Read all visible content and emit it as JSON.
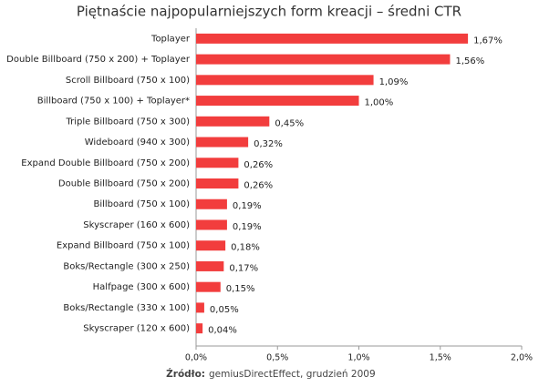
{
  "chart_data": {
    "type": "bar",
    "orientation": "horizontal",
    "title": "Piętnaście najpopularniejszych form kreacji – średni CTR",
    "source_label": "Źródło:",
    "source": "gemiusDirectEffect, grudzień 2009",
    "categories": [
      "Toplayer",
      "Double Billboard (750 x 200) + Toplayer",
      "Scroll Billboard (750 x 100)",
      "Billboard (750 x 100) + Toplayer*",
      "Triple Billboard (750 x 300)",
      "Wideboard (940 x 300)",
      "Expand Double Billboard (750 x 200)",
      "Double Billboard (750 x 200)",
      "Billboard (750 x 100)",
      "Skyscraper (160 x 600)",
      "Expand Billboard (750 x 100)",
      "Boks/Rectangle (300 x 250)",
      "Halfpage (300 x 600)",
      "Boks/Rectangle (330 x 100)",
      "Skyscraper (120 x 600)"
    ],
    "values": [
      1.67,
      1.56,
      1.09,
      1.0,
      0.45,
      0.32,
      0.26,
      0.26,
      0.19,
      0.19,
      0.18,
      0.17,
      0.15,
      0.05,
      0.04
    ],
    "value_labels": [
      "1,67%",
      "1,56%",
      "1,09%",
      "1,00%",
      "0,45%",
      "0,32%",
      "0,26%",
      "0,26%",
      "0,19%",
      "0,19%",
      "0,18%",
      "0,17%",
      "0,15%",
      "0,05%",
      "0,04%"
    ],
    "color": "#f23d3d",
    "xlim": [
      0,
      2.0
    ],
    "xticks": [
      {
        "value": 0,
        "label": "0,0%"
      },
      {
        "value": 0.5,
        "label": "0,5%"
      },
      {
        "value": 1.0,
        "label": "1,0%"
      },
      {
        "value": 1.5,
        "label": "1,5%"
      },
      {
        "value": 2.0,
        "label": "2,0%"
      }
    ]
  }
}
